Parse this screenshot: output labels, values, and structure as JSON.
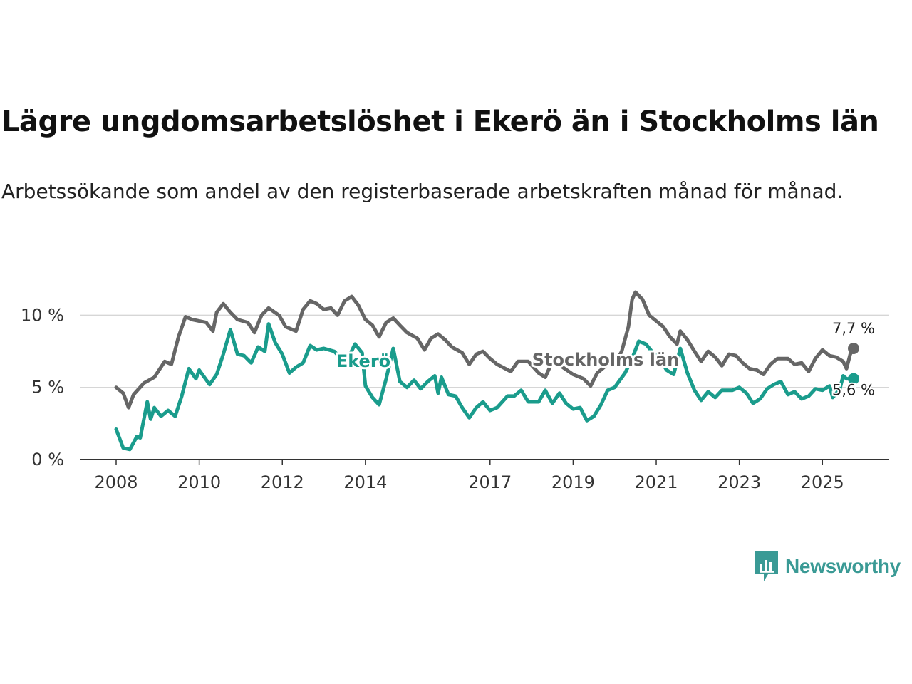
{
  "header": {
    "title": "Lägre ungdomsarbetslöshet i Ekerö än i Stockholms län",
    "subtitle": "Arbetssökande som andel av den registerbaserade arbetskraften månad för månad."
  },
  "brand": {
    "name": "Newsworthy",
    "icon": "newsworthy-logo-icon",
    "color": "#3a9a95"
  },
  "chart_data": {
    "type": "line",
    "title": "Lägre ungdomsarbetslöshet i Ekerö än i Stockholms län",
    "xlabel": "",
    "ylabel": "",
    "xlim": [
      2008,
      2025.75
    ],
    "ylim": [
      0,
      11.7
    ],
    "y_ticks": [
      {
        "value": 0,
        "label": "0 %"
      },
      {
        "value": 5,
        "label": "5 %"
      },
      {
        "value": 10,
        "label": "10 %"
      }
    ],
    "x_ticks": [
      {
        "value": 2008,
        "label": "2008"
      },
      {
        "value": 2010,
        "label": "2010"
      },
      {
        "value": 2012,
        "label": "2012"
      },
      {
        "value": 2014,
        "label": "2014"
      },
      {
        "value": 2017,
        "label": "2017"
      },
      {
        "value": 2019,
        "label": "2019"
      },
      {
        "value": 2021,
        "label": "2021"
      },
      {
        "value": 2023,
        "label": "2023"
      },
      {
        "value": 2025,
        "label": "2025"
      }
    ],
    "grid": true,
    "series": [
      {
        "name": "Stockholms län",
        "color": "#666666",
        "end_label": "7,7 %",
        "points": [
          [
            2008.0,
            5.0
          ],
          [
            2008.17,
            4.6
          ],
          [
            2008.3,
            3.6
          ],
          [
            2008.42,
            4.5
          ],
          [
            2008.67,
            5.3
          ],
          [
            2008.92,
            5.7
          ],
          [
            2009.17,
            6.8
          ],
          [
            2009.33,
            6.6
          ],
          [
            2009.5,
            8.5
          ],
          [
            2009.67,
            9.9
          ],
          [
            2009.83,
            9.7
          ],
          [
            2010.17,
            9.5
          ],
          [
            2010.33,
            8.9
          ],
          [
            2010.42,
            10.2
          ],
          [
            2010.58,
            10.8
          ],
          [
            2010.75,
            10.2
          ],
          [
            2010.92,
            9.7
          ],
          [
            2011.17,
            9.5
          ],
          [
            2011.33,
            8.8
          ],
          [
            2011.5,
            10.0
          ],
          [
            2011.67,
            10.5
          ],
          [
            2011.92,
            10.0
          ],
          [
            2012.08,
            9.2
          ],
          [
            2012.33,
            8.9
          ],
          [
            2012.5,
            10.4
          ],
          [
            2012.67,
            11.0
          ],
          [
            2012.83,
            10.8
          ],
          [
            2013.0,
            10.4
          ],
          [
            2013.17,
            10.5
          ],
          [
            2013.33,
            10.0
          ],
          [
            2013.5,
            11.0
          ],
          [
            2013.67,
            11.3
          ],
          [
            2013.83,
            10.7
          ],
          [
            2014.0,
            9.7
          ],
          [
            2014.17,
            9.3
          ],
          [
            2014.33,
            8.5
          ],
          [
            2014.5,
            9.5
          ],
          [
            2014.67,
            9.8
          ],
          [
            2014.83,
            9.3
          ],
          [
            2015.0,
            8.8
          ],
          [
            2015.25,
            8.4
          ],
          [
            2015.42,
            7.6
          ],
          [
            2015.58,
            8.4
          ],
          [
            2015.75,
            8.7
          ],
          [
            2015.92,
            8.3
          ],
          [
            2016.08,
            7.8
          ],
          [
            2016.33,
            7.4
          ],
          [
            2016.5,
            6.6
          ],
          [
            2016.67,
            7.3
          ],
          [
            2016.83,
            7.5
          ],
          [
            2017.0,
            7.0
          ],
          [
            2017.17,
            6.6
          ],
          [
            2017.5,
            6.1
          ],
          [
            2017.67,
            6.8
          ],
          [
            2017.92,
            6.8
          ],
          [
            2018.17,
            6.0
          ],
          [
            2018.33,
            5.7
          ],
          [
            2018.5,
            6.8
          ],
          [
            2018.75,
            6.4
          ],
          [
            2019.0,
            5.9
          ],
          [
            2019.25,
            5.6
          ],
          [
            2019.42,
            5.1
          ],
          [
            2019.58,
            6.0
          ],
          [
            2019.83,
            6.6
          ],
          [
            2020.0,
            6.6
          ],
          [
            2020.17,
            7.5
          ],
          [
            2020.33,
            9.2
          ],
          [
            2020.42,
            11.1
          ],
          [
            2020.5,
            11.6
          ],
          [
            2020.67,
            11.1
          ],
          [
            2020.83,
            10.0
          ],
          [
            2021.0,
            9.6
          ],
          [
            2021.17,
            9.2
          ],
          [
            2021.33,
            8.5
          ],
          [
            2021.5,
            8.0
          ],
          [
            2021.58,
            8.9
          ],
          [
            2021.75,
            8.3
          ],
          [
            2021.92,
            7.5
          ],
          [
            2022.08,
            6.8
          ],
          [
            2022.25,
            7.5
          ],
          [
            2022.42,
            7.1
          ],
          [
            2022.58,
            6.5
          ],
          [
            2022.75,
            7.3
          ],
          [
            2022.92,
            7.2
          ],
          [
            2023.08,
            6.7
          ],
          [
            2023.25,
            6.3
          ],
          [
            2023.42,
            6.2
          ],
          [
            2023.58,
            5.9
          ],
          [
            2023.75,
            6.6
          ],
          [
            2023.92,
            7.0
          ],
          [
            2024.17,
            7.0
          ],
          [
            2024.33,
            6.6
          ],
          [
            2024.5,
            6.7
          ],
          [
            2024.67,
            6.1
          ],
          [
            2024.83,
            7.0
          ],
          [
            2025.0,
            7.6
          ],
          [
            2025.17,
            7.2
          ],
          [
            2025.33,
            7.1
          ],
          [
            2025.5,
            6.8
          ],
          [
            2025.58,
            6.3
          ],
          [
            2025.67,
            7.3
          ],
          [
            2025.75,
            7.7
          ]
        ]
      },
      {
        "name": "Ekerö",
        "color": "#1a9c8c",
        "end_label": "5,6 %",
        "points": [
          [
            2008.0,
            2.1
          ],
          [
            2008.17,
            0.8
          ],
          [
            2008.33,
            0.7
          ],
          [
            2008.5,
            1.6
          ],
          [
            2008.58,
            1.5
          ],
          [
            2008.75,
            4.0
          ],
          [
            2008.83,
            2.8
          ],
          [
            2008.92,
            3.6
          ],
          [
            2009.08,
            3.0
          ],
          [
            2009.25,
            3.4
          ],
          [
            2009.42,
            3.0
          ],
          [
            2009.58,
            4.4
          ],
          [
            2009.75,
            6.3
          ],
          [
            2009.92,
            5.6
          ],
          [
            2010.0,
            6.2
          ],
          [
            2010.25,
            5.2
          ],
          [
            2010.42,
            5.9
          ],
          [
            2010.58,
            7.3
          ],
          [
            2010.75,
            9.0
          ],
          [
            2010.92,
            7.3
          ],
          [
            2011.08,
            7.2
          ],
          [
            2011.25,
            6.7
          ],
          [
            2011.42,
            7.8
          ],
          [
            2011.58,
            7.5
          ],
          [
            2011.67,
            9.4
          ],
          [
            2011.83,
            8.1
          ],
          [
            2012.0,
            7.3
          ],
          [
            2012.17,
            6.0
          ],
          [
            2012.33,
            6.4
          ],
          [
            2012.5,
            6.7
          ],
          [
            2012.67,
            7.9
          ],
          [
            2012.83,
            7.6
          ],
          [
            2013.0,
            7.7
          ],
          [
            2013.25,
            7.5
          ],
          [
            2013.42,
            7.0
          ],
          [
            2013.58,
            7.0
          ],
          [
            2013.75,
            8.0
          ],
          [
            2013.92,
            7.4
          ],
          [
            2014.0,
            5.1
          ],
          [
            2014.17,
            4.3
          ],
          [
            2014.33,
            3.8
          ],
          [
            2014.5,
            5.6
          ],
          [
            2014.67,
            7.7
          ],
          [
            2014.83,
            5.4
          ],
          [
            2015.0,
            5.0
          ],
          [
            2015.17,
            5.5
          ],
          [
            2015.33,
            4.9
          ],
          [
            2015.5,
            5.4
          ],
          [
            2015.67,
            5.8
          ],
          [
            2015.75,
            4.6
          ],
          [
            2015.83,
            5.7
          ],
          [
            2016.0,
            4.5
          ],
          [
            2016.17,
            4.4
          ],
          [
            2016.33,
            3.6
          ],
          [
            2016.5,
            2.9
          ],
          [
            2016.67,
            3.6
          ],
          [
            2016.83,
            4.0
          ],
          [
            2017.0,
            3.4
          ],
          [
            2017.17,
            3.6
          ],
          [
            2017.42,
            4.4
          ],
          [
            2017.58,
            4.4
          ],
          [
            2017.75,
            4.8
          ],
          [
            2017.92,
            4.0
          ],
          [
            2018.17,
            4.0
          ],
          [
            2018.33,
            4.8
          ],
          [
            2018.5,
            3.9
          ],
          [
            2018.67,
            4.6
          ],
          [
            2018.83,
            3.9
          ],
          [
            2019.0,
            3.5
          ],
          [
            2019.17,
            3.6
          ],
          [
            2019.33,
            2.7
          ],
          [
            2019.5,
            3.0
          ],
          [
            2019.67,
            3.8
          ],
          [
            2019.83,
            4.8
          ],
          [
            2020.0,
            5.0
          ],
          [
            2020.25,
            6.0
          ],
          [
            2020.42,
            7.0
          ],
          [
            2020.58,
            8.2
          ],
          [
            2020.75,
            8.0
          ],
          [
            2020.92,
            7.4
          ],
          [
            2021.08,
            7.0
          ],
          [
            2021.25,
            6.2
          ],
          [
            2021.42,
            5.9
          ],
          [
            2021.58,
            7.7
          ],
          [
            2021.75,
            6.0
          ],
          [
            2021.92,
            4.8
          ],
          [
            2022.08,
            4.1
          ],
          [
            2022.25,
            4.7
          ],
          [
            2022.42,
            4.3
          ],
          [
            2022.58,
            4.8
          ],
          [
            2022.83,
            4.8
          ],
          [
            2023.0,
            5.0
          ],
          [
            2023.17,
            4.6
          ],
          [
            2023.33,
            3.9
          ],
          [
            2023.5,
            4.2
          ],
          [
            2023.67,
            4.9
          ],
          [
            2023.83,
            5.2
          ],
          [
            2024.0,
            5.4
          ],
          [
            2024.17,
            4.5
          ],
          [
            2024.33,
            4.7
          ],
          [
            2024.5,
            4.2
          ],
          [
            2024.67,
            4.4
          ],
          [
            2024.83,
            4.9
          ],
          [
            2025.0,
            4.8
          ],
          [
            2025.17,
            5.1
          ],
          [
            2025.25,
            4.3
          ],
          [
            2025.42,
            4.9
          ],
          [
            2025.5,
            5.8
          ],
          [
            2025.58,
            5.6
          ],
          [
            2025.75,
            5.6
          ]
        ]
      }
    ],
    "annotations": [
      {
        "series": "Ekerö",
        "text": "Ekerö",
        "position": "inline near 2014"
      },
      {
        "series": "Stockholms län",
        "text": "Stockholms län",
        "position": "inline near 2018"
      }
    ]
  }
}
